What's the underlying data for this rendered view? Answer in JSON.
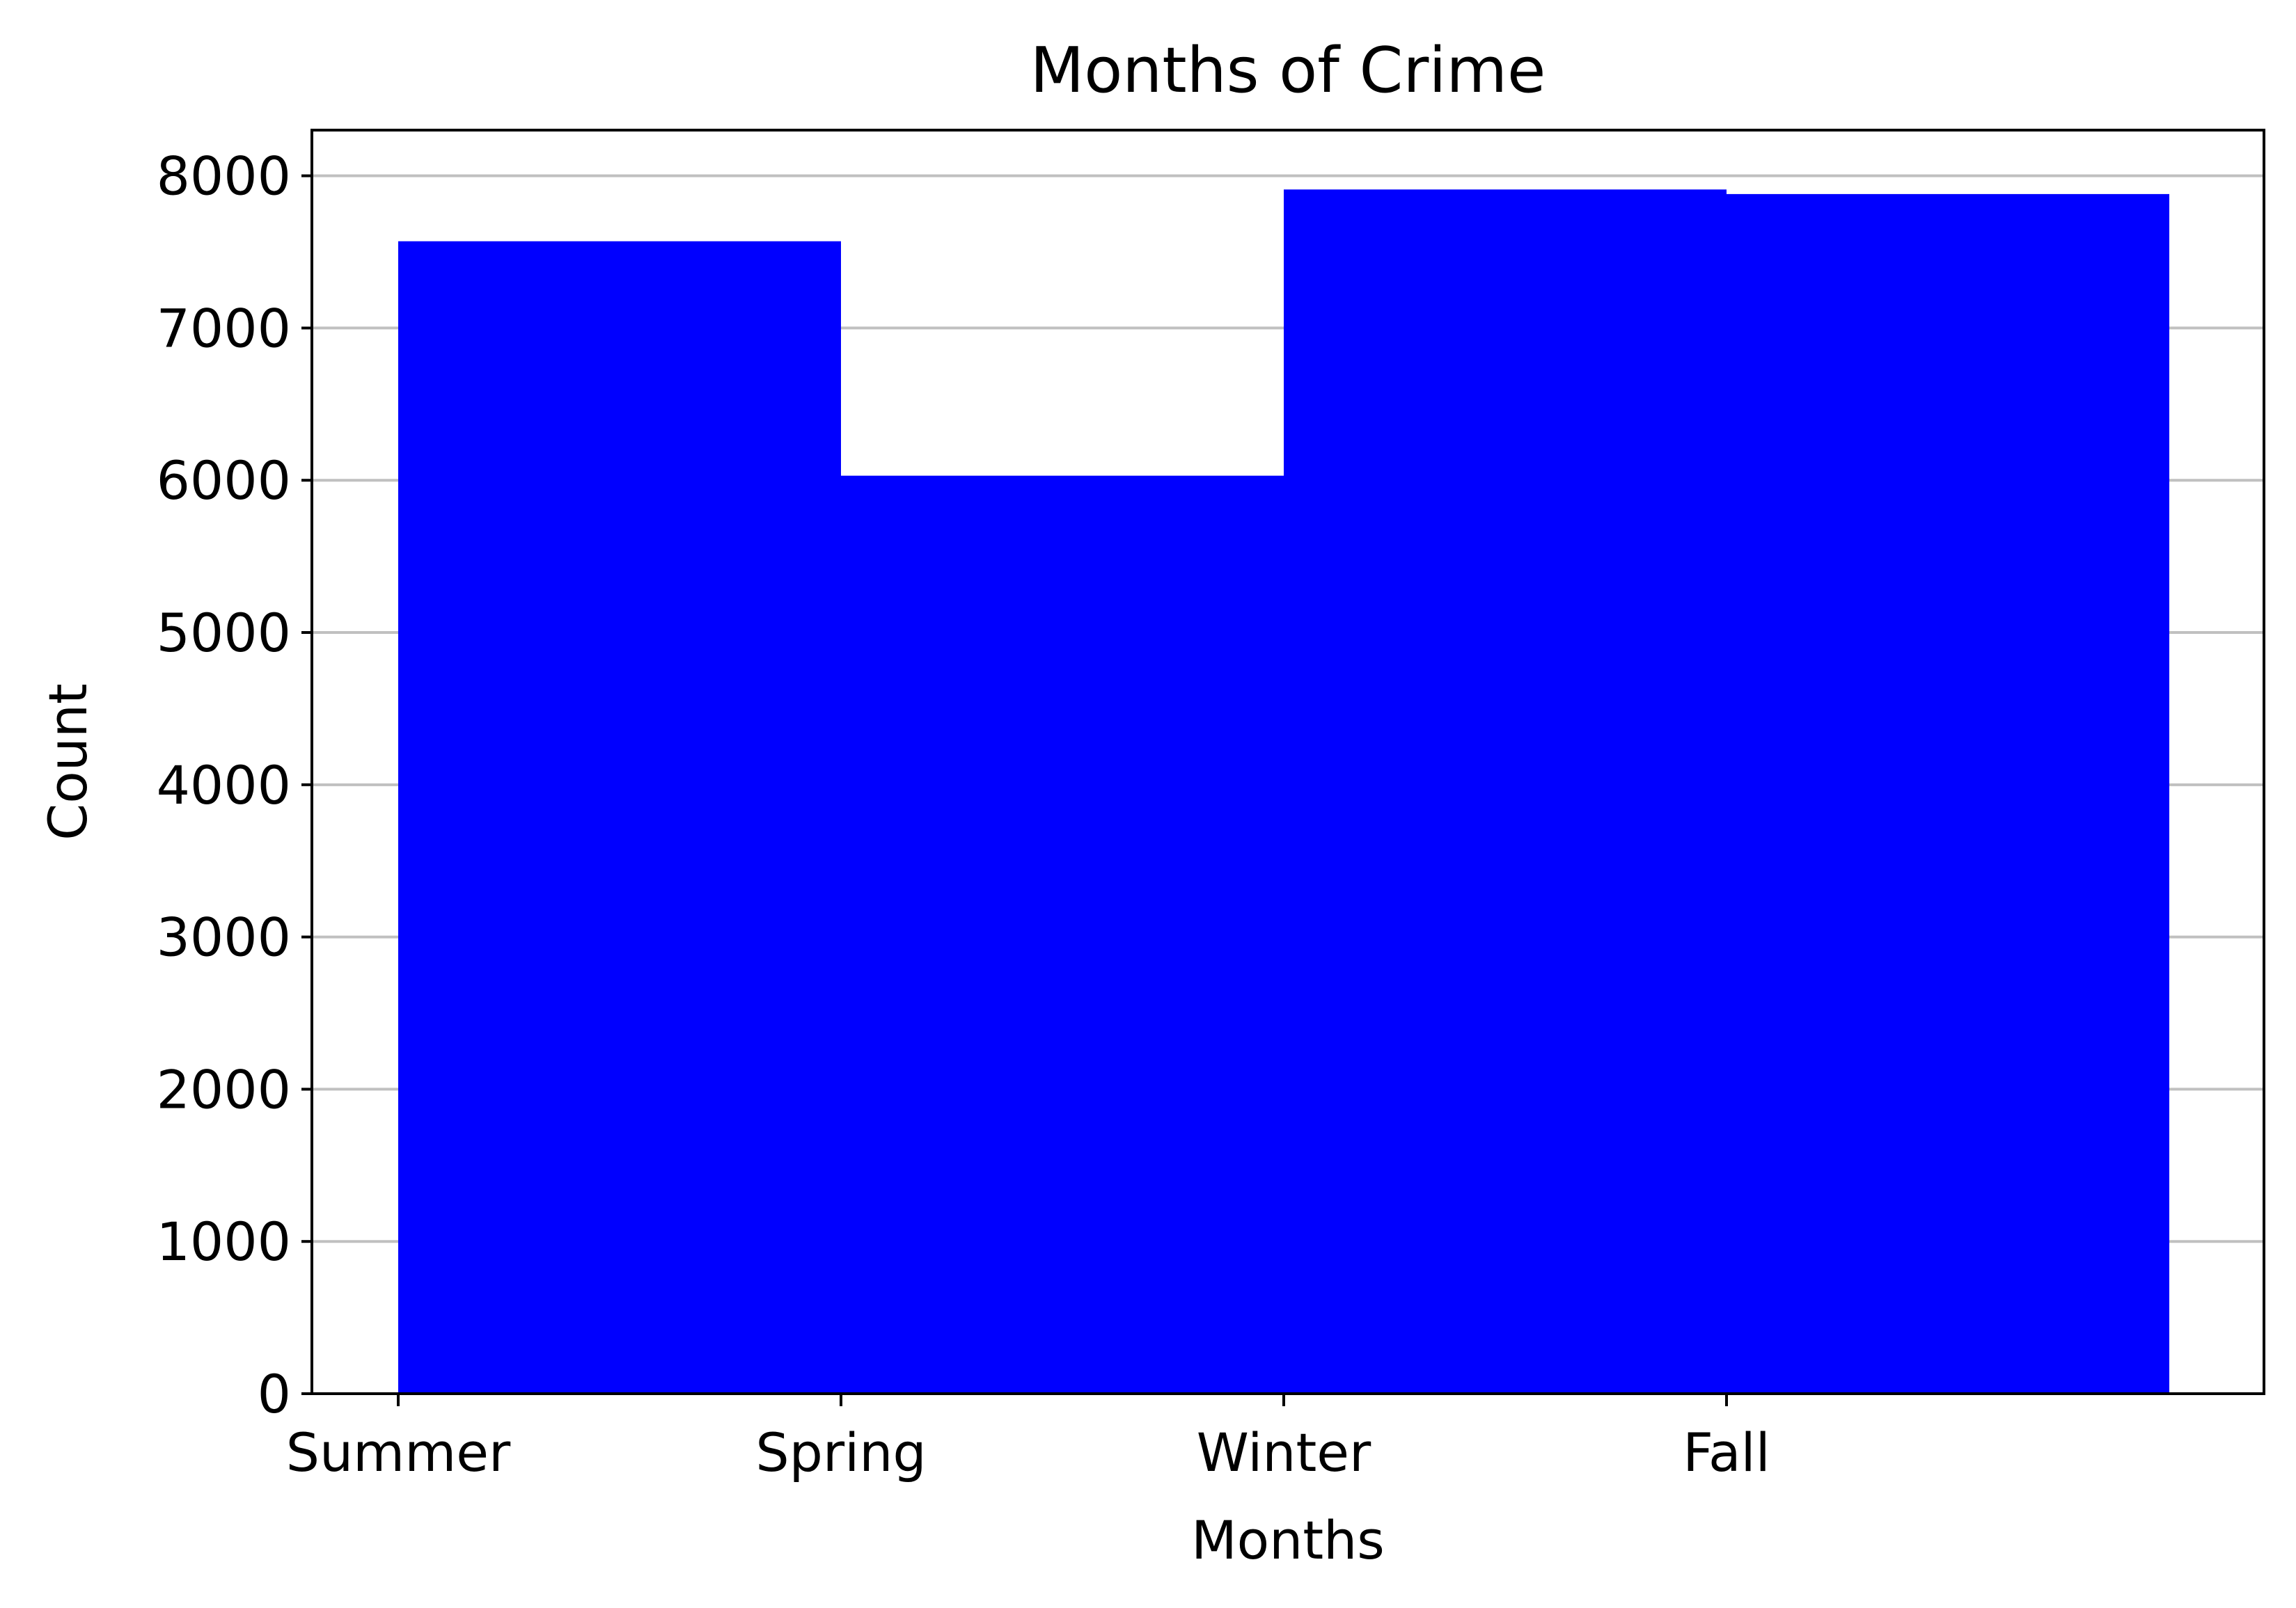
{
  "chart_data": {
    "type": "bar",
    "title": "Months of Crime",
    "xlabel": "Months",
    "ylabel": "Count",
    "categories": [
      "Summer",
      "Spring",
      "Winter",
      "Fall"
    ],
    "values": [
      7570,
      6030,
      7910,
      7880
    ],
    "ylim": [
      0,
      8300
    ],
    "yticks": [
      0,
      1000,
      2000,
      3000,
      4000,
      5000,
      6000,
      7000,
      8000
    ],
    "grid": "y",
    "bar_color": "#0000ff",
    "grid_color": "#c0c0c0"
  }
}
